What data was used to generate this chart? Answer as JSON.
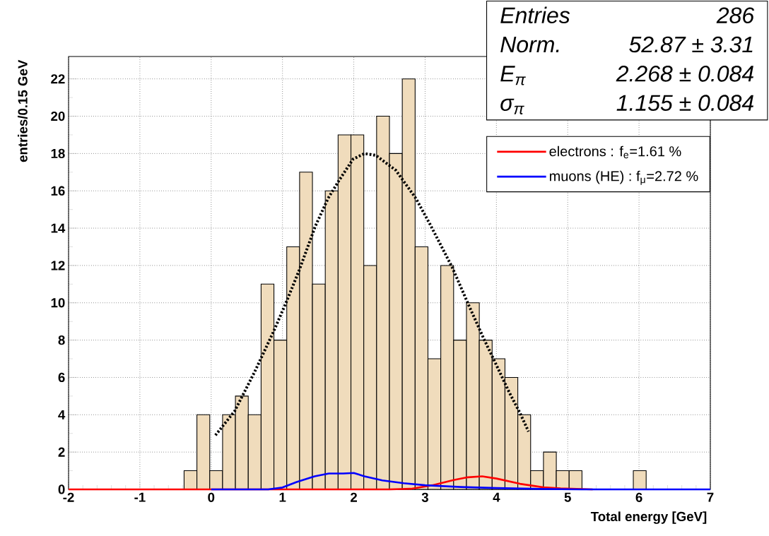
{
  "chart_data": {
    "type": "histogram",
    "xlabel": "Total energy [GeV]",
    "ylabel": "entries/0.15 GeV",
    "xlim": [
      -2,
      7
    ],
    "ylim": [
      0,
      23.2
    ],
    "xticks": [
      -2,
      -1,
      0,
      1,
      2,
      3,
      4,
      5,
      6,
      7
    ],
    "yticks": [
      0,
      2,
      4,
      6,
      8,
      10,
      12,
      14,
      16,
      18,
      20,
      22
    ],
    "grid": true,
    "legend": "top right",
    "annotations": [
      "Entries",
      "286",
      "Norm.",
      "52.87 ± 3.31",
      "E$_{π}$",
      "2.268 ± 0.084",
      "σ$_{π}$",
      "1.155 ± 0.084"
    ],
    "series": [
      {
        "type": "histogram",
        "color": "#f0dcbc",
        "bins": [
          -2,
          -1.82,
          -1.64,
          -1.46,
          -1.28,
          -1.1,
          -0.92,
          -0.74,
          -0.56,
          -0.38,
          -0.2,
          -0.02,
          0.16,
          0.34,
          0.52,
          0.7,
          0.88,
          1.06,
          1.24,
          1.42,
          1.6,
          1.78,
          1.96,
          2.14,
          2.32,
          2.5,
          2.68,
          2.86,
          3.04,
          3.22,
          3.4,
          3.58,
          3.76,
          3.94,
          4.12,
          4.3,
          4.48,
          4.66,
          4.84,
          5.02,
          5.2,
          5.38,
          5.56,
          5.74,
          5.92,
          6.1,
          6.28,
          6.46,
          6.64,
          6.82,
          7
        ],
        "values": [
          0,
          0,
          0,
          0,
          0,
          0,
          0,
          0,
          0,
          1,
          4,
          1,
          4,
          5,
          4,
          11,
          8,
          13,
          17,
          11,
          16,
          19,
          19,
          12,
          20,
          18,
          22,
          13,
          7,
          12,
          8,
          10,
          8,
          7,
          6,
          4,
          1,
          2,
          1,
          1,
          0,
          0,
          0,
          0,
          1,
          0,
          0,
          0,
          0,
          0
        ]
      },
      {
        "type": "line",
        "color": "#000000",
        "line_style": "dotted",
        "x": [
          0.06,
          0.33,
          0.61,
          0.88,
          1.06,
          1.24,
          1.46,
          1.64,
          1.8,
          1.99,
          2.15,
          2.31,
          2.59,
          2.87,
          3.07,
          3.38,
          3.62,
          3.82,
          4.02,
          4.18,
          4.33,
          4.45
        ],
        "values": [
          2.9,
          4.2,
          6.3,
          8.5,
          10.1,
          11.8,
          14.1,
          15.6,
          16.6,
          17.7,
          18.0,
          17.9,
          17.1,
          15.6,
          14.2,
          11.9,
          9.8,
          8.1,
          6.5,
          5.2,
          4.1,
          3.1
        ]
      },
      {
        "type": "line",
        "name": "electrons : f$_{e}$=1.61 %",
        "color": "#ff0000",
        "x": [
          -2,
          2.5,
          2.8,
          3.1,
          3.4,
          3.6,
          3.8,
          4.0,
          4.33,
          4.66,
          4.9,
          5.35
        ],
        "values": [
          0,
          0,
          0.03,
          0.22,
          0.5,
          0.65,
          0.7,
          0.58,
          0.3,
          0.11,
          0.05,
          0
        ]
      },
      {
        "type": "line",
        "name": "muons (HE) : f$_{μ}$=2.72 %",
        "color": "#0000ff",
        "x": [
          0,
          0.8,
          1.0,
          1.2,
          1.45,
          1.65,
          1.85,
          2.0,
          2.15,
          2.4,
          2.7,
          3.0,
          3.5,
          4.0,
          4.5,
          5.2,
          7
        ],
        "values": [
          0,
          0,
          0.1,
          0.4,
          0.7,
          0.85,
          0.85,
          0.88,
          0.7,
          0.48,
          0.33,
          0.22,
          0.13,
          0.07,
          0.03,
          0,
          0
        ]
      }
    ]
  }
}
